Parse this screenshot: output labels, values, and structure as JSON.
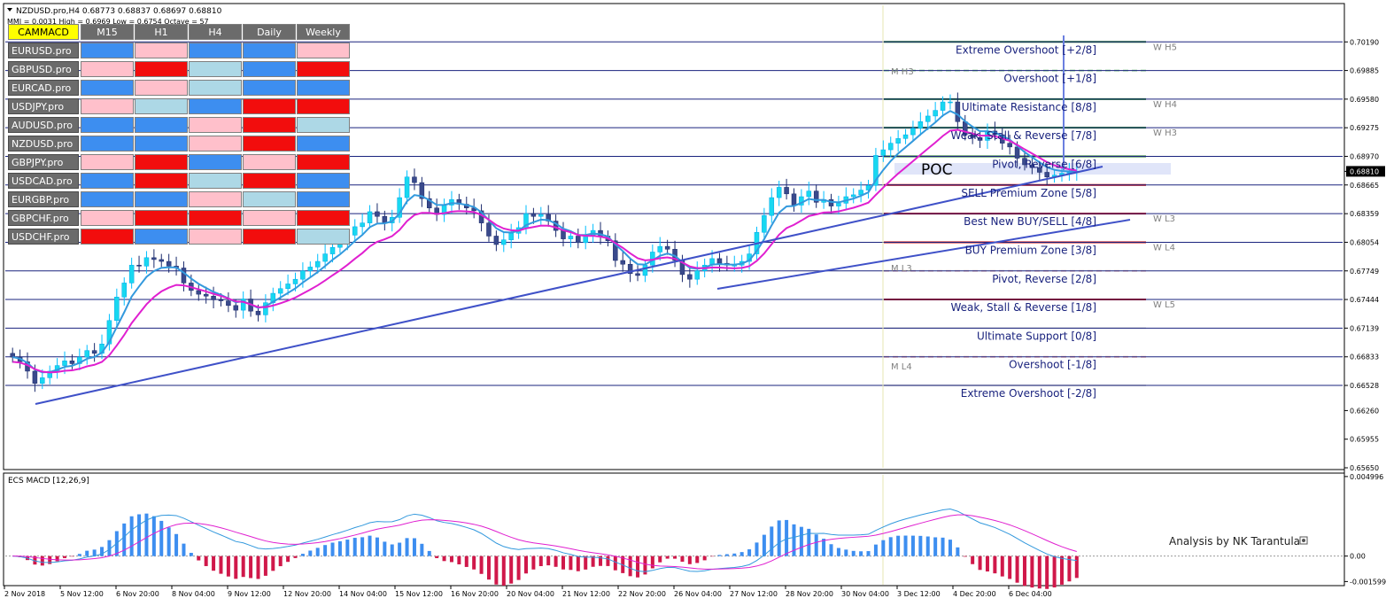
{
  "header": {
    "line1": "NZDUSD.pro,H4  0.68773 0.68837 0.68697 0.68810",
    "line2": "MMI = 0.0031   High = 0.6969   Low = 0.6754   Octave = 57"
  },
  "heatmap": {
    "corner_label": "CAMMACD",
    "columns": [
      "M15",
      "H1",
      "H4",
      "Daily",
      "Weekly"
    ],
    "rows": [
      {
        "pair": "EURUSD.pro",
        "cells": [
          "blue",
          "pink",
          "blue",
          "blue",
          "pink"
        ]
      },
      {
        "pair": "GBPUSD.pro",
        "cells": [
          "pink",
          "red",
          "lightblue",
          "blue",
          "red"
        ]
      },
      {
        "pair": "EURCAD.pro",
        "cells": [
          "blue",
          "pink",
          "lightblue",
          "blue",
          "blue"
        ]
      },
      {
        "pair": "USDJPY.pro",
        "cells": [
          "pink",
          "lightblue",
          "blue",
          "red",
          "red"
        ]
      },
      {
        "pair": "AUDUSD.pro",
        "cells": [
          "blue",
          "blue",
          "pink",
          "red",
          "lightblue"
        ]
      },
      {
        "pair": "NZDUSD.pro",
        "cells": [
          "blue",
          "blue",
          "pink",
          "red",
          "blue"
        ]
      },
      {
        "pair": "GBPJPY.pro",
        "cells": [
          "pink",
          "red",
          "blue",
          "pink",
          "red"
        ]
      },
      {
        "pair": "USDCAD.pro",
        "cells": [
          "blue",
          "red",
          "lightblue",
          "red",
          "blue"
        ]
      },
      {
        "pair": "EURGBP.pro",
        "cells": [
          "blue",
          "blue",
          "pink",
          "lightblue",
          "blue"
        ]
      },
      {
        "pair": "GBPCHF.pro",
        "cells": [
          "pink",
          "red",
          "red",
          "pink",
          "red"
        ]
      },
      {
        "pair": "USDCHF.pro",
        "cells": [
          "red",
          "blue",
          "pink",
          "red",
          "lightblue"
        ]
      }
    ],
    "colors": {
      "blue": "#3d8ef0",
      "pink": "#ffc0cb",
      "red": "#f20d0d",
      "lightblue": "#add8e6"
    }
  },
  "chart_data": {
    "type": "candlestick",
    "symbol": "NZDUSD.pro",
    "timeframe": "H4",
    "ylim": [
      0.6565,
      0.7058
    ],
    "price_ticks": [
      "0.70190",
      "0.69885",
      "0.69580",
      "0.69275",
      "0.68970",
      "0.68810",
      "0.68665",
      "0.68359",
      "0.68054",
      "0.67749",
      "0.67444",
      "0.67139",
      "0.66833",
      "0.66528",
      "0.66260",
      "0.65955",
      "0.65650"
    ],
    "current_price": "0.68810",
    "x_labels": [
      "2 Nov 2018",
      "5 Nov 12:00",
      "6 Nov 20:00",
      "8 Nov 04:00",
      "9 Nov 12:00",
      "12 Nov 20:00",
      "14 Nov 04:00",
      "15 Nov 12:00",
      "16 Nov 20:00",
      "20 Nov 04:00",
      "21 Nov 12:00",
      "22 Nov 20:00",
      "26 Nov 04:00",
      "27 Nov 12:00",
      "28 Nov 20:00",
      "30 Nov 04:00",
      "3 Dec 12:00",
      "4 Dec 20:00",
      "6 Dec 04:00"
    ],
    "closes": [
      0.6683,
      0.6678,
      0.6668,
      0.6655,
      0.6661,
      0.6668,
      0.6674,
      0.6679,
      0.6676,
      0.6683,
      0.669,
      0.6687,
      0.6697,
      0.6722,
      0.6747,
      0.6762,
      0.6781,
      0.678,
      0.6789,
      0.6787,
      0.6785,
      0.678,
      0.6778,
      0.6762,
      0.6754,
      0.675,
      0.6748,
      0.6744,
      0.6743,
      0.6738,
      0.6733,
      0.6745,
      0.6732,
      0.6728,
      0.6741,
      0.6751,
      0.6756,
      0.6761,
      0.6766,
      0.6775,
      0.6779,
      0.6785,
      0.6793,
      0.68,
      0.6804,
      0.6813,
      0.6822,
      0.6826,
      0.6838,
      0.6833,
      0.6826,
      0.6832,
      0.6853,
      0.6875,
      0.6869,
      0.6852,
      0.6842,
      0.6835,
      0.6845,
      0.6851,
      0.6846,
      0.6842,
      0.6839,
      0.6826,
      0.6812,
      0.6803,
      0.6808,
      0.6815,
      0.6821,
      0.6836,
      0.6833,
      0.6835,
      0.6828,
      0.6818,
      0.6809,
      0.6812,
      0.6805,
      0.6813,
      0.6818,
      0.6812,
      0.6807,
      0.6786,
      0.6782,
      0.6772,
      0.677,
      0.6781,
      0.6795,
      0.6801,
      0.6798,
      0.6786,
      0.6771,
      0.6766,
      0.6775,
      0.6781,
      0.6788,
      0.6783,
      0.6781,
      0.6781,
      0.6785,
      0.6793,
      0.6816,
      0.6834,
      0.6853,
      0.6864,
      0.6857,
      0.6845,
      0.6854,
      0.686,
      0.6848,
      0.6851,
      0.6844,
      0.6847,
      0.6854,
      0.6856,
      0.6861,
      0.6866,
      0.6898,
      0.6904,
      0.6911,
      0.6916,
      0.692,
      0.6927,
      0.6934,
      0.694,
      0.6946,
      0.6955,
      0.6955,
      0.6934,
      0.692,
      0.6917,
      0.6914,
      0.6924,
      0.692,
      0.6911,
      0.6907,
      0.6895,
      0.6888,
      0.6885,
      0.688,
      0.6875,
      0.6877,
      0.6879,
      0.688,
      0.6881
    ],
    "ema_fast_color": "#3399dd",
    "ema_slow_color": "#e020d0",
    "murrey_lines": [
      {
        "label": "Extreme Overshoot [+2/8]",
        "price": 0.7019,
        "color": "#1e7b1e",
        "w": "W  H5"
      },
      {
        "label": "Overshoot [+1/8]",
        "price": 0.69885,
        "color": "#9fd89f",
        "w": ""
      },
      {
        "label": "Ultimate Resistance [8/8]",
        "price": 0.6958,
        "color": "#1e7b1e",
        "w": "W  H4"
      },
      {
        "label": "Weak, Stall & Reverse [7/8]",
        "price": 0.69275,
        "color": "#1e7b1e",
        "w": "W  H3"
      },
      {
        "label": "Pivot, Reverse [6/8]",
        "price": 0.6897,
        "color": "#1e7b1e",
        "w": ""
      },
      {
        "label": "SELL Premium Zone [5/8]",
        "price": 0.68665,
        "color": "#cc0000",
        "w": ""
      },
      {
        "label": "Best New BUY/SELL [4/8]",
        "price": 0.68359,
        "color": "#cc0000",
        "w": "W  L3"
      },
      {
        "label": "BUY Premium Zone [3/8]",
        "price": 0.68054,
        "color": "#cc0000",
        "w": "W  L4"
      },
      {
        "label": "Pivot, Reverse [2/8]",
        "price": 0.67749,
        "color": "#e8c0c0",
        "w": ""
      },
      {
        "label": "Weak, Stall & Reverse [1/8]",
        "price": 0.67444,
        "color": "#cc0000",
        "w": "W  L5"
      },
      {
        "label": "Ultimate Support [0/8]",
        "price": 0.67139,
        "color": "#dddddd",
        "w": ""
      },
      {
        "label": "Overshoot [-1/8]",
        "price": 0.66833,
        "color": "#f0b0b0",
        "w": ""
      },
      {
        "label": "Extreme Overshoot [-2/8]",
        "price": 0.66528,
        "color": "#dddddd",
        "w": ""
      }
    ],
    "m_labels": [
      "M  H3",
      "M  L3",
      "M  L4"
    ],
    "poc_label": "POC",
    "macd": {
      "title": "ECS MACD [12,26,9]",
      "ticks": [
        "0.004996",
        "0.00",
        "-0.001599"
      ],
      "ylim": [
        -0.0018,
        0.0051
      ]
    },
    "annotation": "Analysis by NK Tarantula"
  }
}
